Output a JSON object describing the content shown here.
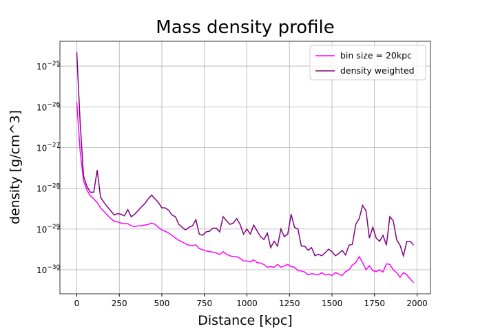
{
  "chart_data": {
    "type": "line",
    "title": "Mass density profile",
    "x_label": "Distance [kpc]",
    "y_label": "density [g/cm^3]",
    "x": [
      0,
      20,
      40,
      60,
      80,
      100,
      120,
      140,
      160,
      180,
      200,
      220,
      240,
      260,
      280,
      300,
      320,
      340,
      360,
      380,
      400,
      420,
      440,
      460,
      480,
      500,
      520,
      540,
      560,
      580,
      600,
      620,
      640,
      660,
      680,
      700,
      720,
      740,
      760,
      780,
      800,
      820,
      840,
      860,
      880,
      900,
      920,
      940,
      960,
      980,
      1000,
      1020,
      1040,
      1060,
      1080,
      1100,
      1120,
      1140,
      1160,
      1180,
      1200,
      1220,
      1240,
      1260,
      1280,
      1300,
      1320,
      1340,
      1360,
      1380,
      1400,
      1420,
      1440,
      1460,
      1480,
      1500,
      1520,
      1540,
      1560,
      1580,
      1600,
      1620,
      1640,
      1660,
      1680,
      1700,
      1720,
      1740,
      1760,
      1780,
      1800,
      1820,
      1840,
      1860,
      1880,
      1900,
      1920,
      1940,
      1960,
      1980
    ],
    "series": [
      {
        "name": "bin size = 20kpc",
        "color": "#ff00ff",
        "values": [
          1.3e-26,
          8e-28,
          1.5e-28,
          9e-29,
          6.5e-29,
          5.5e-29,
          4.5e-29,
          3.3e-29,
          2.7e-29,
          2.2e-29,
          1.8e-29,
          1.55e-29,
          1.5e-29,
          1.4e-29,
          1.35e-29,
          1.35e-29,
          1.2e-29,
          1.15e-29,
          1.2e-29,
          1.2e-29,
          1.25e-29,
          1.3e-29,
          1.4e-29,
          1.3e-29,
          1.1e-29,
          9.5e-30,
          8.8e-30,
          8e-30,
          7e-30,
          6e-30,
          5.3e-30,
          4.8e-30,
          4.3e-30,
          4e-30,
          3.9e-30,
          4.1e-30,
          3.3e-30,
          3.1e-30,
          2.9e-30,
          2.8e-30,
          2.7e-30,
          2.6e-30,
          2.35e-30,
          2.8e-30,
          2.4e-30,
          2.2e-30,
          2.1e-30,
          2.1e-30,
          1.9e-30,
          1.65e-30,
          1.65e-30,
          1.55e-30,
          1.75e-30,
          1.5e-30,
          1.45e-30,
          1.35e-30,
          1.15e-30,
          1.2e-30,
          1.15e-30,
          1.35e-30,
          1.15e-30,
          1.25e-30,
          1.35e-30,
          1.2e-30,
          1.15e-30,
          9.5e-31,
          9.3e-31,
          8.8e-31,
          7.5e-31,
          8e-31,
          7.8e-31,
          7.5e-31,
          8.5e-31,
          7.5e-31,
          7.8e-31,
          7.2e-31,
          8.5e-31,
          7.8e-31,
          7.2e-31,
          9e-31,
          1e-30,
          1.3e-30,
          1.5e-30,
          2.1e-30,
          1.5e-30,
          1e-30,
          1.25e-30,
          9.5e-31,
          9e-31,
          1e-30,
          8.8e-31,
          1.4e-30,
          1.35e-30,
          1e-30,
          8.5e-31,
          6.5e-31,
          8.5e-31,
          7.5e-31,
          6e-31,
          4.8e-31
        ]
      },
      {
        "name": "density weighted",
        "color": "#800080",
        "values": [
          2.2e-25,
          4e-27,
          2e-28,
          1.1e-28,
          8e-29,
          8e-29,
          2.8e-28,
          6e-29,
          4.5e-29,
          3.5e-29,
          2.8e-29,
          2.2e-29,
          2.4e-29,
          2.3e-29,
          2.1e-29,
          3e-29,
          2e-29,
          2.3e-29,
          2.8e-29,
          3.5e-29,
          4.2e-29,
          5.5e-29,
          6.8e-29,
          5.5e-29,
          4.5e-29,
          3.3e-29,
          3.3e-29,
          2.9e-29,
          2.2e-29,
          2e-29,
          1.3e-29,
          1.1e-29,
          9.5e-30,
          1.1e-29,
          1.2e-29,
          1.7e-29,
          7.5e-30,
          7e-30,
          8.5e-30,
          8.8e-30,
          1.05e-29,
          1.05e-29,
          8.5e-30,
          2e-29,
          1.6e-29,
          1.3e-29,
          1.4e-29,
          1.8e-29,
          1.3e-29,
          7.5e-30,
          1e-29,
          7.5e-30,
          1.25e-29,
          9e-30,
          6.5e-30,
          5.5e-30,
          8e-30,
          3.5e-30,
          5e-30,
          3.8e-30,
          1e-29,
          6.5e-30,
          7.5e-30,
          2.3e-29,
          1.1e-29,
          1e-29,
          3.8e-30,
          3.8e-30,
          3e-30,
          3.5e-30,
          2.2e-30,
          2.4e-30,
          2.2e-30,
          2.6e-30,
          3.2e-30,
          2.8e-30,
          2.2e-30,
          2.5e-30,
          3e-30,
          2.3e-30,
          4e-30,
          4.2e-30,
          1.3e-29,
          1.8e-29,
          3.8e-29,
          2.8e-29,
          6e-30,
          1.1e-29,
          6e-30,
          5e-30,
          7e-30,
          4e-30,
          2e-29,
          1.6e-29,
          5.5e-30,
          4e-30,
          2.2e-30,
          5e-30,
          5e-30,
          4e-30
        ]
      }
    ],
    "xlim": [
      -99,
      2079
    ],
    "xticks": [
      0,
      250,
      500,
      750,
      1000,
      1250,
      1500,
      1750,
      2000
    ],
    "ylim": [
      2.57e-31,
      4.07e-25
    ],
    "y_scale": "log",
    "yticks": [
      {
        "value": 1e-30,
        "label": "10",
        "exponent": "−30"
      },
      {
        "value": 1e-29,
        "label": "10",
        "exponent": "−29"
      },
      {
        "value": 1e-28,
        "label": "10",
        "exponent": "−28"
      },
      {
        "value": 1e-27,
        "label": "10",
        "exponent": "−27"
      },
      {
        "value": 1e-26,
        "label": "10",
        "exponent": "−26"
      },
      {
        "value": 1e-25,
        "label": "10",
        "exponent": "−25"
      }
    ],
    "grid": true,
    "legend_position": "upper right"
  }
}
